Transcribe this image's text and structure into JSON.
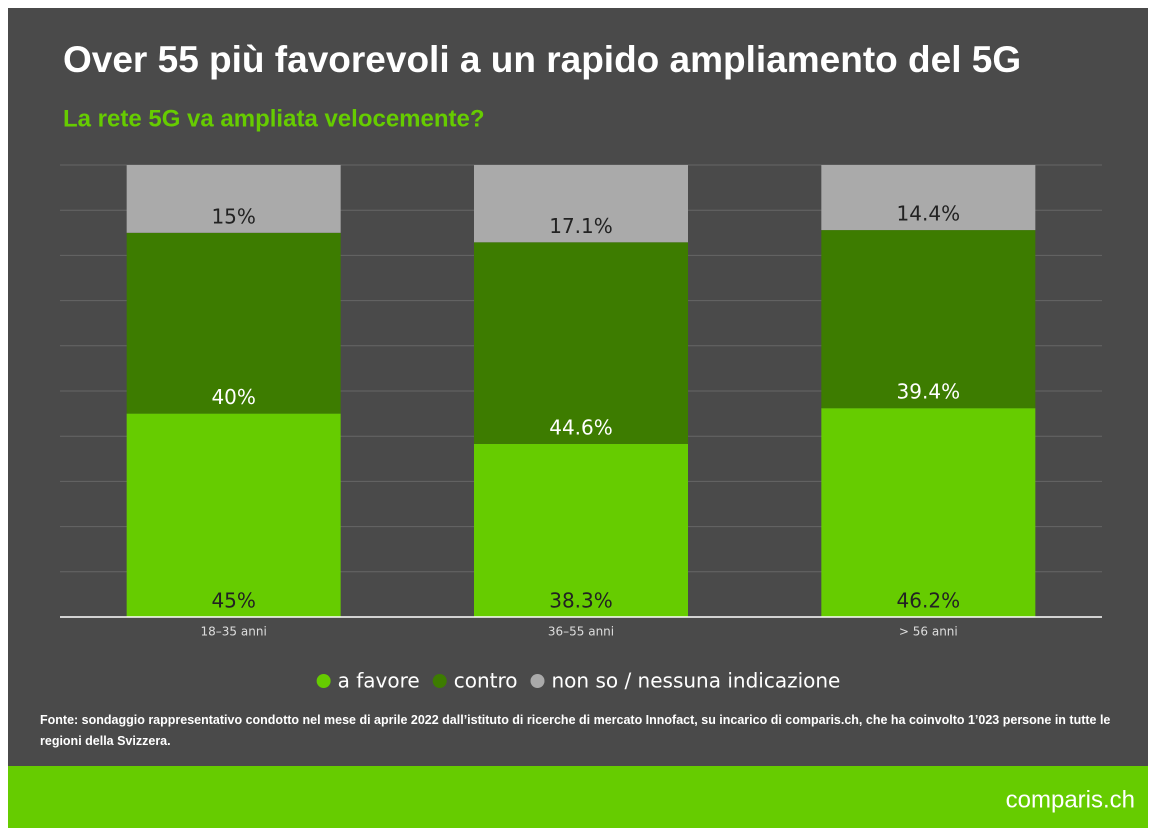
{
  "chart_data": {
    "type": "stacked_bar",
    "title": "Over 55 più favorevoli a un rapido ampliamento del 5G",
    "subtitle": "La rete 5G va ampliata velocemente?",
    "categories": [
      "18–35 anni",
      "36–55 anni",
      "> 56 anni"
    ],
    "series": [
      {
        "name": "a favore",
        "color": "#66cc00",
        "values": [
          45,
          38.3,
          46.2
        ],
        "value_labels": [
          "45%",
          "38.3%",
          "46.2%"
        ]
      },
      {
        "name": "contro",
        "color": "#3d7c00",
        "values": [
          40,
          44.6,
          39.4
        ],
        "value_labels": [
          "40%",
          "44.6%",
          "39.4%"
        ]
      },
      {
        "name": "non so / nessuna indicazione",
        "color": "#aaaaaa",
        "values": [
          15,
          17.1,
          14.4
        ],
        "value_labels": [
          "15%",
          "17.1%",
          "14.4%"
        ]
      }
    ],
    "ylim": [
      0,
      100
    ],
    "yticks": [
      0,
      10,
      20,
      30,
      40,
      50,
      60,
      70,
      80,
      90,
      100
    ],
    "grid": true,
    "source": "Fonte: sondaggio rappresentativo condotto nel mese di aprile 2022 dall’istituto di ricerche di mercato Innofact, su incarico di comparis.ch, che ha coinvolto 1’023 persone in tutte le regioni della Svizzera.",
    "logo": "comparis.ch"
  }
}
